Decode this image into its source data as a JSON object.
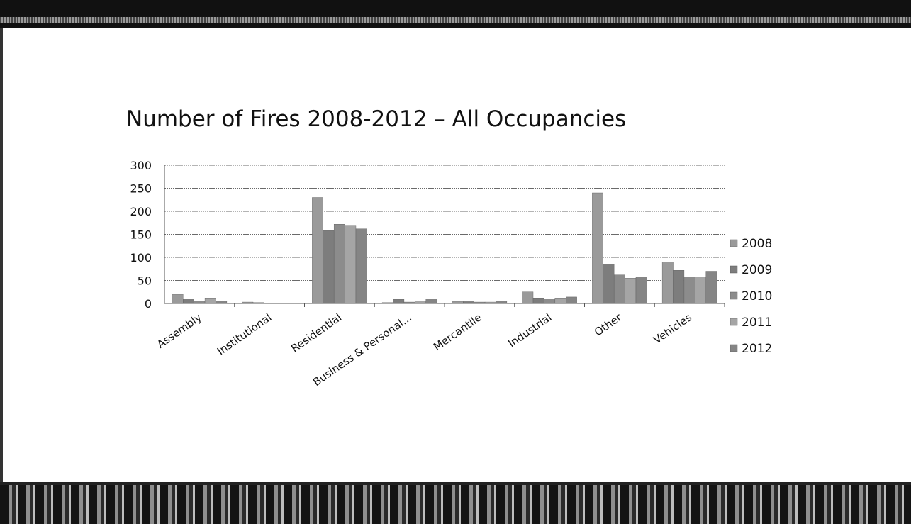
{
  "chart_data": {
    "type": "bar",
    "title": "Number of Fires 2008-2012 – All Occupancies",
    "xlabel": "",
    "ylabel": "",
    "ylim": [
      0,
      300
    ],
    "yticks": [
      "300",
      "250",
      "200",
      "150",
      "100",
      "50",
      "0"
    ],
    "grid": true,
    "legend_position": "right",
    "categories": [
      "Assembly",
      "Institutional",
      "Residential",
      "Business & Personal...",
      "Mercantile",
      "Industrial",
      "Other",
      "Vehicles"
    ],
    "series": [
      {
        "name": "2008",
        "color": "#9a9a9a",
        "values": [
          20,
          3,
          230,
          2,
          4,
          25,
          240,
          90
        ]
      },
      {
        "name": "2009",
        "color": "#7d7d7d",
        "values": [
          10,
          2,
          158,
          9,
          4,
          12,
          85,
          72
        ]
      },
      {
        "name": "2010",
        "color": "#8c8c8c",
        "values": [
          5,
          1,
          172,
          3,
          3,
          10,
          62,
          58
        ]
      },
      {
        "name": "2011",
        "color": "#a5a5a5",
        "values": [
          12,
          1,
          168,
          5,
          3,
          12,
          55,
          58
        ]
      },
      {
        "name": "2012",
        "color": "#858585",
        "values": [
          5,
          1,
          162,
          10,
          5,
          14,
          58,
          70
        ]
      }
    ]
  }
}
